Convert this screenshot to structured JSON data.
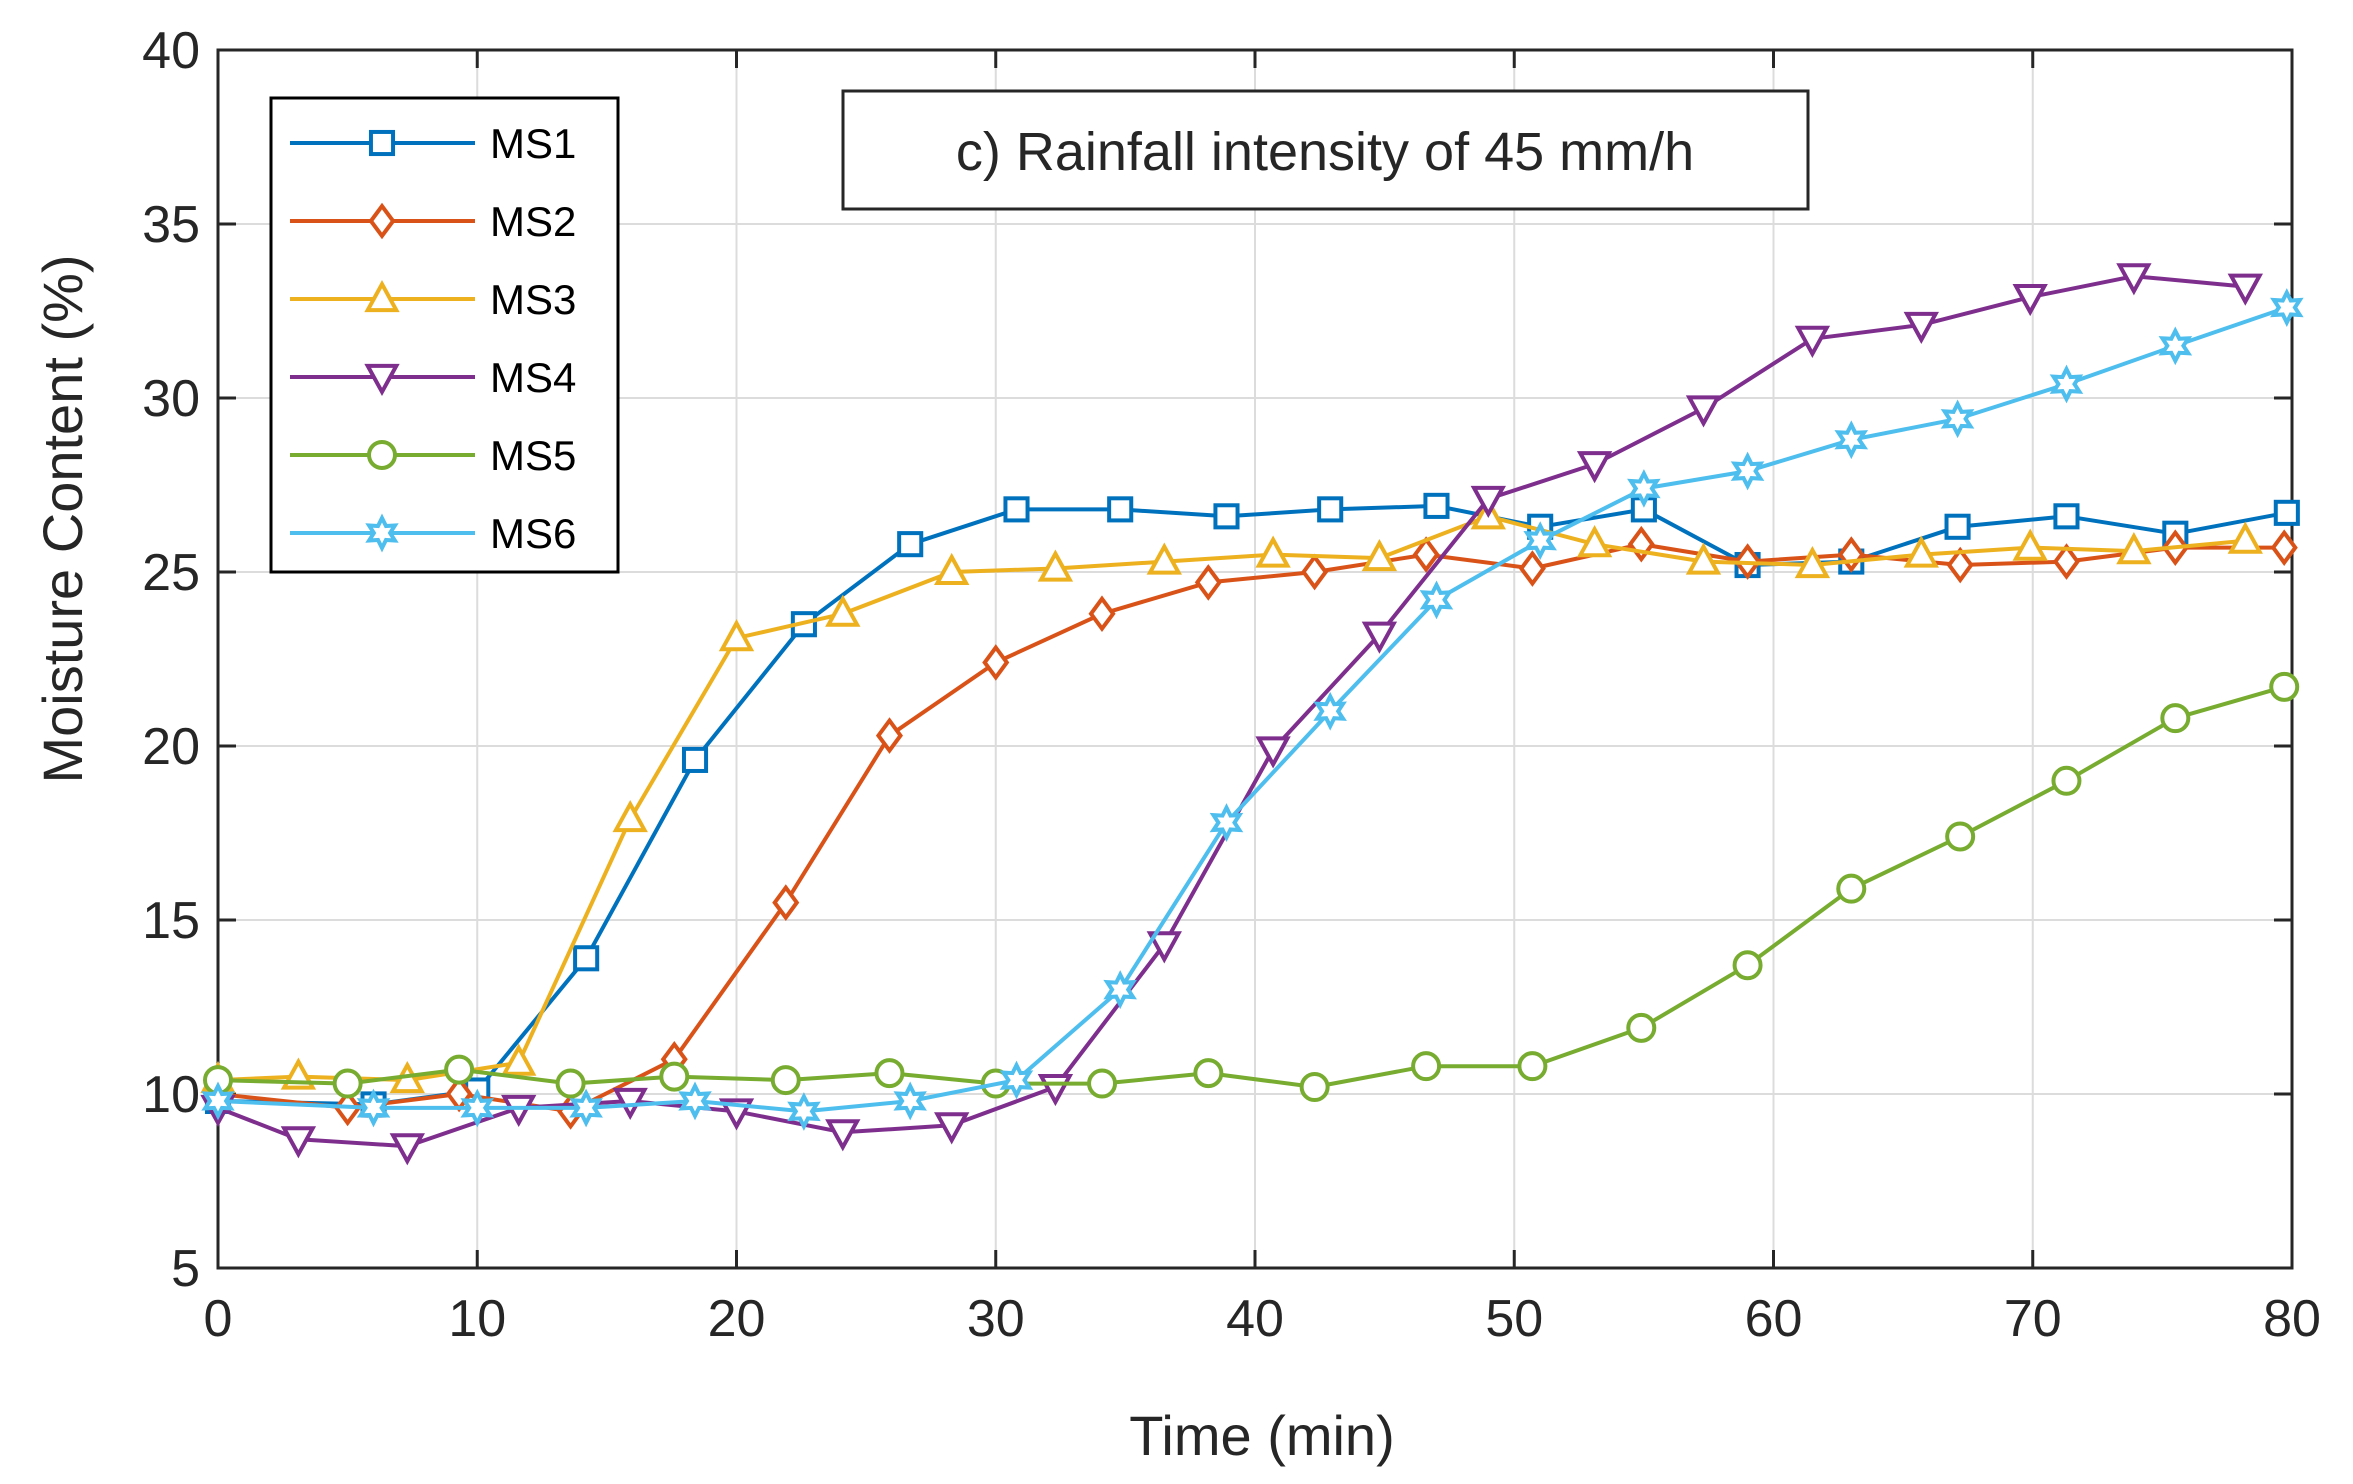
{
  "chart_data": {
    "type": "line",
    "title": "",
    "annotation": "c) Rainfall intensity of 45 mm/h",
    "xlabel": "Time (min)",
    "ylabel": "Moisture Content (%)",
    "xlim": [
      0,
      80
    ],
    "ylim": [
      5,
      40
    ],
    "xticks": [
      "0",
      "10",
      "20",
      "30",
      "40",
      "50",
      "60",
      "70",
      "80"
    ],
    "yticks": [
      "5",
      "10",
      "15",
      "20",
      "25",
      "30",
      "35",
      "40"
    ],
    "grid": true,
    "legend_position": "top-left",
    "series": [
      {
        "name": "MS1",
        "color": "#0072BD",
        "marker": "square",
        "x": [
          0,
          6,
          10,
          14.2,
          18.4,
          22.6,
          26.7,
          30.8,
          34.8,
          38.9,
          42.9,
          47,
          51,
          55,
          59,
          63,
          67.1,
          71.3,
          75.5,
          79.8
        ],
        "y": [
          9.8,
          9.7,
          10.1,
          13.9,
          19.6,
          23.5,
          25.8,
          26.8,
          26.8,
          26.6,
          26.8,
          26.9,
          26.3,
          26.8,
          25.2,
          25.3,
          26.3,
          26.6,
          26.1,
          26.7
        ]
      },
      {
        "name": "MS2",
        "color": "#D95319",
        "marker": "diamond",
        "x": [
          0,
          5,
          9.3,
          13.6,
          17.6,
          21.9,
          25.9,
          30,
          34.1,
          38.2,
          42.3,
          46.6,
          50.7,
          54.9,
          59,
          63,
          67.2,
          71.3,
          75.5,
          79.7
        ],
        "y": [
          10,
          9.6,
          10,
          9.5,
          11,
          15.5,
          20.3,
          22.4,
          23.8,
          24.7,
          25,
          25.5,
          25.1,
          25.8,
          25.3,
          25.5,
          25.2,
          25.3,
          25.7,
          25.7
        ]
      },
      {
        "name": "MS3",
        "color": "#EDB120",
        "marker": "triangle-up",
        "x": [
          0,
          3.1,
          7.3,
          11.6,
          15.9,
          20,
          24.1,
          28.3,
          32.3,
          36.5,
          40.7,
          44.8,
          49,
          53.1,
          57.3,
          61.5,
          65.7,
          69.9,
          73.9,
          78.2
        ],
        "y": [
          10.4,
          10.5,
          10.4,
          10.9,
          17.9,
          23.1,
          23.8,
          25,
          25.1,
          25.3,
          25.5,
          25.4,
          26.6,
          25.8,
          25.3,
          25.2,
          25.5,
          25.7,
          25.6,
          25.9
        ]
      },
      {
        "name": "MS4",
        "color": "#7E2F8E",
        "marker": "triangle-down",
        "x": [
          0,
          3.1,
          7.3,
          11.6,
          15.9,
          20,
          24.1,
          28.3,
          32.3,
          36.5,
          40.7,
          44.8,
          49,
          53.1,
          57.3,
          61.5,
          65.7,
          69.9,
          73.9,
          78.2
        ],
        "y": [
          9.6,
          8.7,
          8.5,
          9.6,
          9.8,
          9.5,
          8.9,
          9.1,
          10.2,
          14.3,
          19.9,
          23.2,
          27.1,
          28.1,
          29.7,
          31.7,
          32.1,
          32.9,
          33.5,
          33.2
        ]
      },
      {
        "name": "MS5",
        "color": "#77AC30",
        "marker": "circle",
        "x": [
          0,
          5,
          9.3,
          13.6,
          17.6,
          21.9,
          25.9,
          30,
          34.1,
          38.2,
          42.3,
          46.6,
          50.7,
          54.9,
          59,
          63,
          67.2,
          71.3,
          75.5,
          79.7
        ],
        "y": [
          10.4,
          10.3,
          10.7,
          10.3,
          10.5,
          10.4,
          10.6,
          10.3,
          10.3,
          10.6,
          10.2,
          10.8,
          10.8,
          11.9,
          13.7,
          15.9,
          17.4,
          19,
          20.8,
          21.7
        ]
      },
      {
        "name": "MS6",
        "color": "#4DBEEE",
        "marker": "hexagram",
        "x": [
          0,
          6,
          10,
          14.2,
          18.4,
          22.6,
          26.7,
          30.8,
          34.8,
          38.9,
          42.9,
          47,
          51,
          55,
          59,
          63,
          67.1,
          71.3,
          75.5,
          79.8
        ],
        "y": [
          9.8,
          9.6,
          9.6,
          9.6,
          9.8,
          9.5,
          9.8,
          10.4,
          13,
          17.8,
          21,
          24.2,
          25.9,
          27.4,
          27.9,
          28.8,
          29.4,
          30.4,
          31.5,
          32.6
        ]
      }
    ]
  }
}
